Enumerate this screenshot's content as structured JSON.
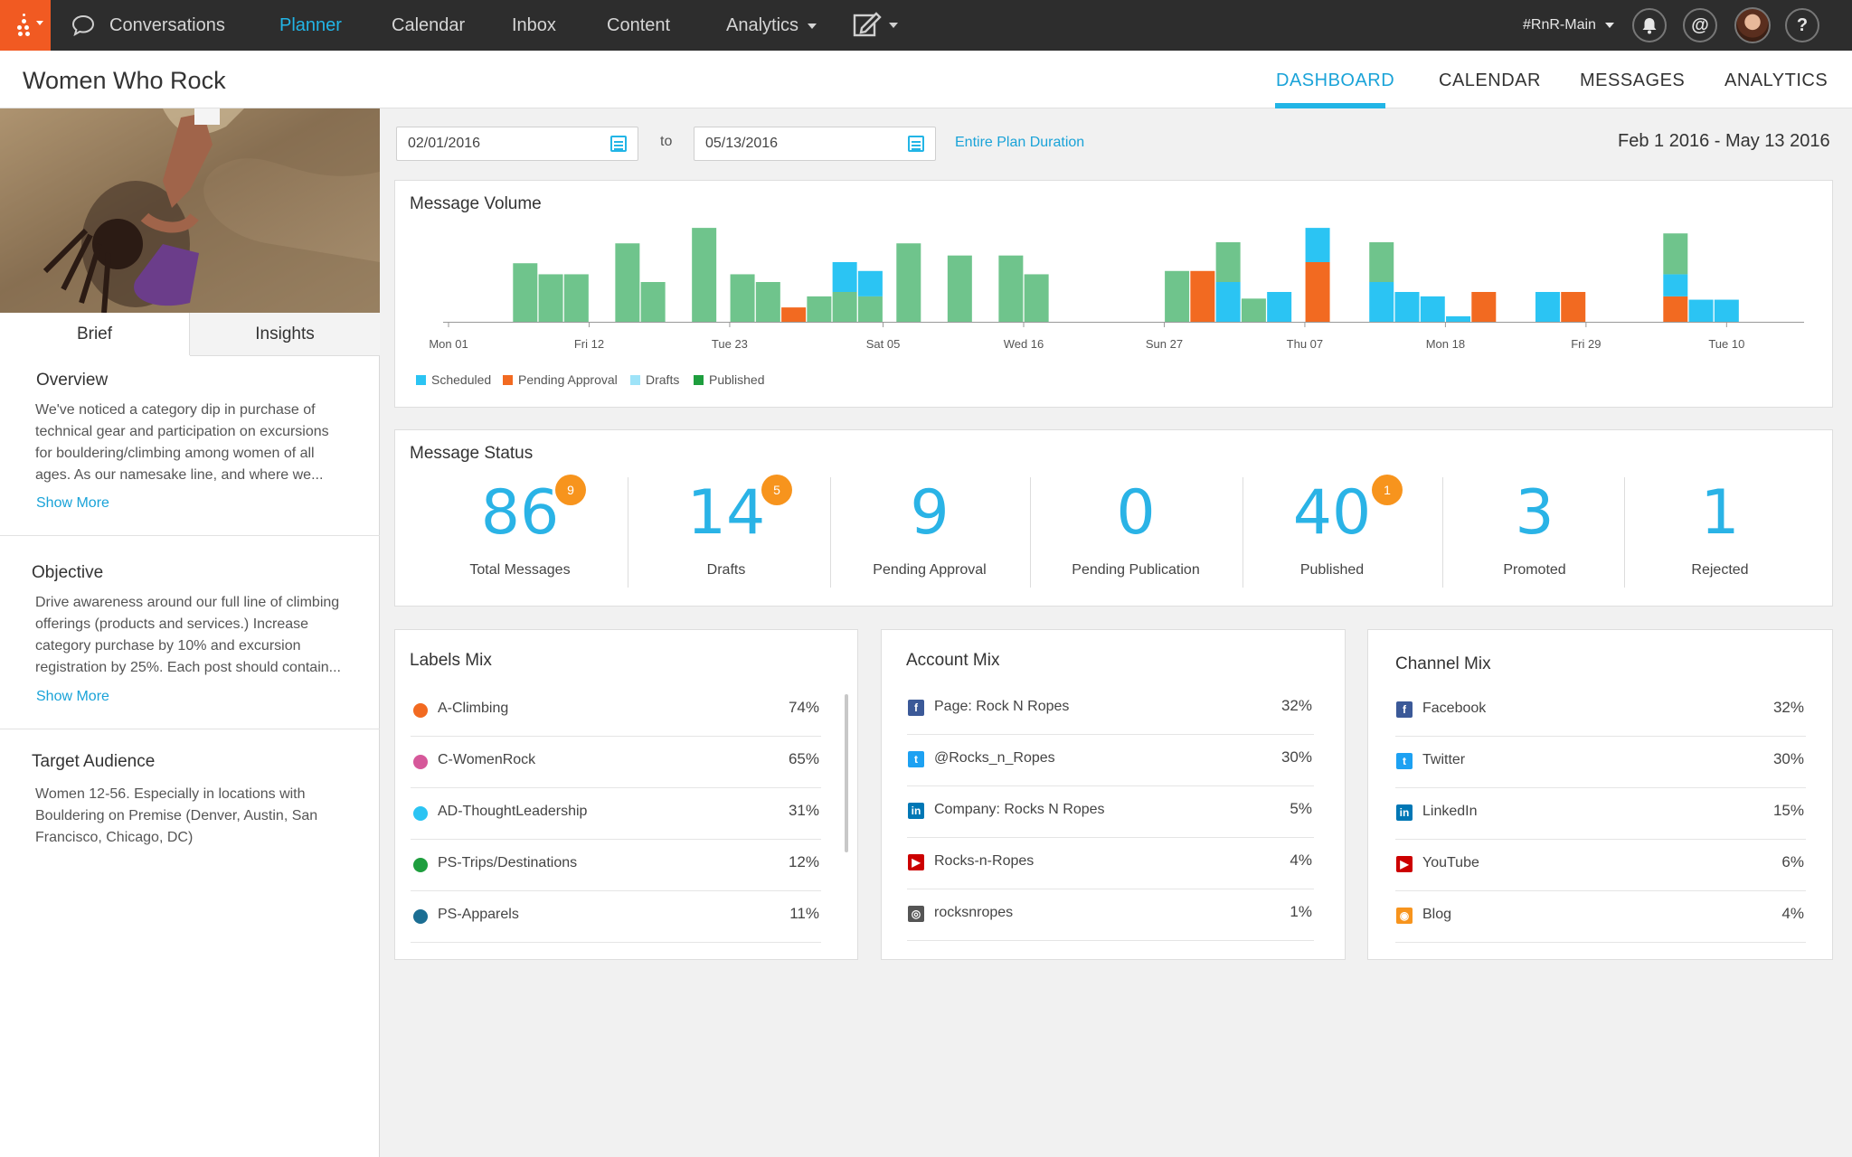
{
  "nav": {
    "items": [
      {
        "label": "Conversations"
      },
      {
        "label": "Planner"
      },
      {
        "label": "Calendar"
      },
      {
        "label": "Inbox"
      },
      {
        "label": "Content"
      },
      {
        "label": "Analytics"
      }
    ],
    "workspace": "#RnR-Main",
    "mention_symbol": "@",
    "help_symbol": "?"
  },
  "page": {
    "title": "Women Who Rock",
    "tabs": [
      {
        "label": "DASHBOARD",
        "active": true
      },
      {
        "label": "CALENDAR"
      },
      {
        "label": "MESSAGES"
      },
      {
        "label": "ANALYTICS"
      }
    ]
  },
  "brief": {
    "tabs": [
      {
        "label": "Brief"
      },
      {
        "label": "Insights"
      }
    ],
    "overview": {
      "title": "Overview",
      "lines": [
        "We've noticed a category dip in purchase of",
        "technical gear and participation on excursions",
        "for bouldering/climbing among women of all",
        "ages. As our namesake line, and where we..."
      ],
      "show_more": "Show More"
    },
    "objective": {
      "title": "Objective",
      "lines": [
        "Drive awareness around our full line of climbing",
        "offerings (products and services.) Increase",
        "category purchase by 10% and excursion",
        "registration by 25%. Each post should contain..."
      ],
      "show_more": "Show More"
    },
    "audience": {
      "title": "Target Audience",
      "lines": [
        "Women 12-56. Especially in locations with",
        "Bouldering on Premise (Denver, Austin, San",
        "Francisco, Chicago, DC)"
      ]
    }
  },
  "filters": {
    "start_date": "02/01/2016",
    "to_label": "to",
    "end_date": "05/13/2016",
    "entire_plan": "Entire Plan Duration",
    "range_label": "Feb 1 2016 - May 13 2016"
  },
  "volume": {
    "title": "Message Volume"
  },
  "chart_data": {
    "type": "bar",
    "stacked": true,
    "title": "Message Volume",
    "x_tick_labels": [
      "Mon 01",
      "Fri 12",
      "Tue 23",
      "Sat 05",
      "Wed 16",
      "Sun 27",
      "Thu 07",
      "Mon 18",
      "Fri 29",
      "Tue 10"
    ],
    "x_range_days": [
      0,
      105
    ],
    "colors": {
      "Scheduled": "#2bc4f3",
      "Pending Approval": "#f26a21",
      "Drafts": "#9ee3f8",
      "Published": "#6fc48c"
    },
    "series": [
      {
        "name": "Scheduled"
      },
      {
        "name": "Pending Approval"
      },
      {
        "name": "Drafts"
      },
      {
        "name": "Published"
      }
    ],
    "bars": [
      {
        "day": 6,
        "Published": 53
      },
      {
        "day": 8,
        "Published": 43
      },
      {
        "day": 10,
        "Published": 43
      },
      {
        "day": 14,
        "Published": 71
      },
      {
        "day": 16,
        "Published": 36
      },
      {
        "day": 20,
        "Published": 85
      },
      {
        "day": 23,
        "Published": 43
      },
      {
        "day": 25,
        "Published": 36
      },
      {
        "day": 27,
        "Pending Approval": 13
      },
      {
        "day": 29,
        "Published": 23
      },
      {
        "day": 31,
        "Published": 27,
        "Scheduled": 27
      },
      {
        "day": 33,
        "Published": 23,
        "Scheduled": 23
      },
      {
        "day": 36,
        "Published": 71
      },
      {
        "day": 40,
        "Published": 60
      },
      {
        "day": 44,
        "Published": 60
      },
      {
        "day": 46,
        "Published": 43
      },
      {
        "day": 57,
        "Published": 46
      },
      {
        "day": 59,
        "Pending Approval": 46
      },
      {
        "day": 61,
        "Scheduled": 36,
        "Published": 36
      },
      {
        "day": 63,
        "Published": 21
      },
      {
        "day": 65,
        "Scheduled": 27
      },
      {
        "day": 68,
        "Pending Approval": 54,
        "Scheduled": 31
      },
      {
        "day": 73,
        "Scheduled": 36,
        "Published": 36
      },
      {
        "day": 75,
        "Scheduled": 27
      },
      {
        "day": 77,
        "Scheduled": 23
      },
      {
        "day": 79,
        "Scheduled": 5
      },
      {
        "day": 81,
        "Pending Approval": 27
      },
      {
        "day": 86,
        "Scheduled": 27
      },
      {
        "day": 88,
        "Pending Approval": 27
      },
      {
        "day": 96,
        "Pending Approval": 23,
        "Scheduled": 20,
        "Published": 37
      },
      {
        "day": 98,
        "Scheduled": 20
      },
      {
        "day": 100,
        "Scheduled": 20
      }
    ],
    "ylim": [
      0,
      90
    ],
    "legend": "bottom-left",
    "grid": false
  },
  "status": {
    "title": "Message Status",
    "items": [
      {
        "value": "86",
        "label": "Total Messages",
        "badge": "9"
      },
      {
        "value": "14",
        "label": "Drafts",
        "badge": "5"
      },
      {
        "value": "9",
        "label": "Pending Approval"
      },
      {
        "value": "0",
        "label": "Pending Publication"
      },
      {
        "value": "40",
        "label": "Published",
        "badge": "1"
      },
      {
        "value": "3",
        "label": "Promoted"
      },
      {
        "value": "1",
        "label": "Rejected"
      }
    ]
  },
  "labels_mix": {
    "title": "Labels Mix",
    "rows": [
      {
        "label": "A-Climbing",
        "value": "74%",
        "color": "#f26a21"
      },
      {
        "label": "C-WomenRock",
        "value": "65%",
        "color": "#d6589a"
      },
      {
        "label": "AD-ThoughtLeadership",
        "value": "31%",
        "color": "#2bc4f3"
      },
      {
        "label": "PS-Trips/Destinations",
        "value": "12%",
        "color": "#1e9e3e"
      },
      {
        "label": "PS-Apparels",
        "value": "11%",
        "color": "#1b6e93"
      }
    ]
  },
  "account_mix": {
    "title": "Account Mix",
    "rows": [
      {
        "label": "Page: Rock N Ropes",
        "value": "32%",
        "icon": "facebook-icon",
        "color": "#3b5998",
        "glyph": "f"
      },
      {
        "label": "@Rocks_n_Ropes",
        "value": "30%",
        "icon": "twitter-icon",
        "color": "#1da1f2",
        "glyph": "t"
      },
      {
        "label": "Company: Rocks N Ropes",
        "value": "5%",
        "icon": "linkedin-icon",
        "color": "#0077b5",
        "glyph": "in"
      },
      {
        "label": "Rocks-n-Ropes",
        "value": "4%",
        "icon": "youtube-icon",
        "color": "#cc0000",
        "glyph": "▶"
      },
      {
        "label": "rocksnropes",
        "value": "1%",
        "icon": "instagram-icon",
        "color": "#555555",
        "glyph": "◎"
      }
    ]
  },
  "channel_mix": {
    "title": "Channel Mix",
    "rows": [
      {
        "label": "Facebook",
        "value": "32%",
        "icon": "facebook-icon",
        "color": "#3b5998",
        "glyph": "f"
      },
      {
        "label": "Twitter",
        "value": "30%",
        "icon": "twitter-icon",
        "color": "#1da1f2",
        "glyph": "t"
      },
      {
        "label": "LinkedIn",
        "value": "15%",
        "icon": "linkedin-icon",
        "color": "#0077b5",
        "glyph": "in"
      },
      {
        "label": "YouTube",
        "value": "6%",
        "icon": "youtube-icon",
        "color": "#cc0000",
        "glyph": "▶"
      },
      {
        "label": "Blog",
        "value": "4%",
        "icon": "blog-icon",
        "color": "#f7941d",
        "glyph": "◉"
      }
    ]
  }
}
